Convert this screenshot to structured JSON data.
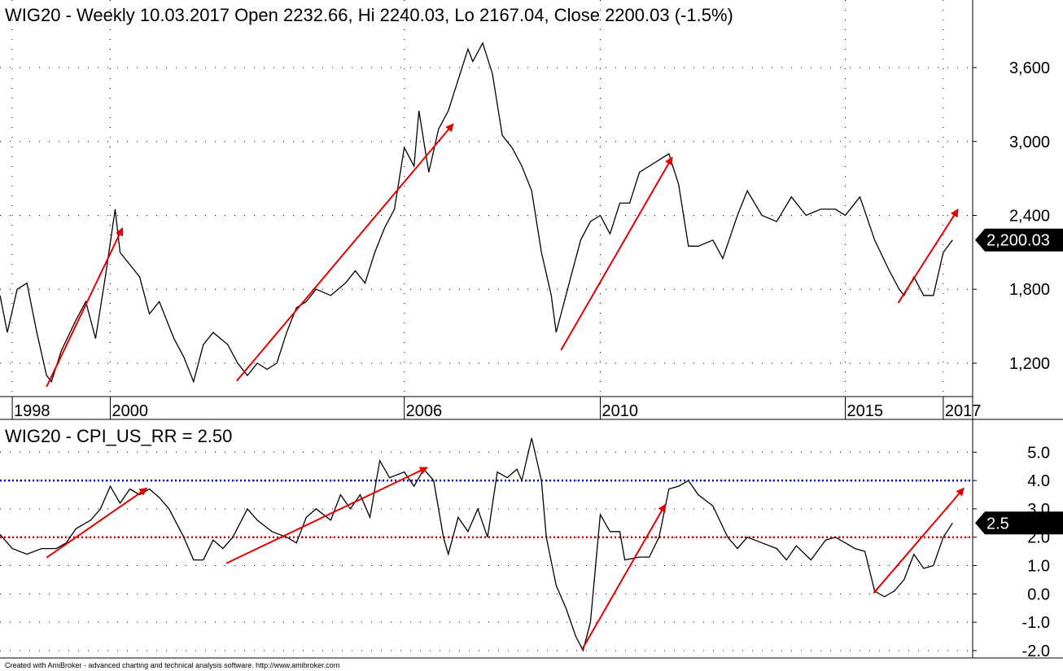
{
  "chart_data": [
    {
      "type": "line",
      "title": "WIG20 - Weekly 10.03.2017 Open 2232.66, Hi 2240.03, Lo 2167.04, Close 2200.03 (-1.5%)",
      "color": "#000000",
      "x": [
        1997.75,
        1997.9,
        1998.1,
        1998.3,
        1998.5,
        1998.7,
        1998.8,
        1999.0,
        1999.3,
        1999.5,
        1999.7,
        1999.9,
        2000.1,
        2000.2,
        2000.4,
        2000.6,
        2000.8,
        2001.0,
        2001.3,
        2001.5,
        2001.7,
        2001.9,
        2002.1,
        2002.4,
        2002.6,
        2002.8,
        2003.0,
        2003.2,
        2003.4,
        2003.6,
        2003.8,
        2004.0,
        2004.2,
        2004.5,
        2004.8,
        2005.0,
        2005.2,
        2005.4,
        2005.6,
        2005.8,
        2006.0,
        2006.2,
        2006.3,
        2006.5,
        2006.7,
        2006.9,
        2007.1,
        2007.3,
        2007.4,
        2007.6,
        2007.8,
        2008.0,
        2008.2,
        2008.4,
        2008.6,
        2008.8,
        2009.0,
        2009.1,
        2009.2,
        2009.4,
        2009.6,
        2009.8,
        2010.0,
        2010.2,
        2010.4,
        2010.6,
        2010.8,
        2011.0,
        2011.2,
        2011.4,
        2011.6,
        2011.8,
        2012.0,
        2012.3,
        2012.5,
        2012.8,
        2013.0,
        2013.3,
        2013.6,
        2013.9,
        2014.2,
        2014.5,
        2014.8,
        2015.0,
        2015.3,
        2015.6,
        2015.9,
        2016.1,
        2016.2,
        2016.4,
        2016.6,
        2016.8,
        2017.0,
        2017.19
      ],
      "values": [
        1750,
        1450,
        1800,
        1850,
        1450,
        1100,
        1050,
        1300,
        1550,
        1700,
        1400,
        1900,
        2450,
        2100,
        2000,
        1900,
        1600,
        1700,
        1400,
        1250,
        1050,
        1350,
        1450,
        1350,
        1200,
        1100,
        1200,
        1150,
        1200,
        1450,
        1650,
        1700,
        1800,
        1750,
        1850,
        1950,
        1850,
        2100,
        2300,
        2450,
        2950,
        2800,
        3250,
        2750,
        3100,
        3250,
        3500,
        3750,
        3650,
        3800,
        3550,
        3050,
        2950,
        2800,
        2600,
        2100,
        1750,
        1450,
        1600,
        1900,
        2200,
        2350,
        2400,
        2250,
        2500,
        2500,
        2750,
        2800,
        2850,
        2900,
        2650,
        2150,
        2150,
        2200,
        2050,
        2400,
        2600,
        2400,
        2350,
        2550,
        2400,
        2450,
        2450,
        2400,
        2550,
        2200,
        1950,
        1800,
        1750,
        1900,
        1750,
        1750,
        2100,
        2200.03
      ],
      "xlim": [
        1997.75,
        2017.6
      ],
      "xticks": [
        1998,
        2000,
        2006,
        2010,
        2015,
        2017
      ],
      "ylim": [
        942,
        4149
      ],
      "yticks": [
        {
          "value": 1200,
          "label": "1,200"
        },
        {
          "value": 1800,
          "label": "1,800"
        },
        {
          "value": 2400,
          "label": "2,400"
        },
        {
          "value": 3000,
          "label": "3,000"
        },
        {
          "value": 3600,
          "label": "3,600"
        }
      ],
      "last_value": {
        "value": 2200.03,
        "label": "2,200.03"
      },
      "arrow_color": "#e00000",
      "arrows": [
        {
          "from": [
            1998.7,
            1008
          ],
          "to": [
            2000.25,
            2297
          ]
        },
        {
          "from": [
            2002.58,
            1055
          ],
          "to": [
            2007.0,
            3143
          ]
        },
        {
          "from": [
            2009.2,
            1306
          ],
          "to": [
            2011.47,
            2872
          ]
        },
        {
          "from": [
            2016.08,
            1689
          ],
          "to": [
            2017.3,
            2449
          ]
        }
      ],
      "grid": true
    },
    {
      "type": "line",
      "title": "WIG20 - CPI_US_RR = 2.50",
      "color": "#000000",
      "x": [
        1997.75,
        1998.0,
        1998.3,
        1998.6,
        1998.9,
        1999.1,
        1999.3,
        1999.6,
        1999.8,
        2000.0,
        2000.2,
        2000.4,
        2000.6,
        2000.8,
        2001.0,
        2001.2,
        2001.5,
        2001.7,
        2001.9,
        2002.1,
        2002.3,
        2002.5,
        2002.8,
        2003.0,
        2003.3,
        2003.6,
        2003.8,
        2004.0,
        2004.2,
        2004.5,
        2004.7,
        2004.9,
        2005.1,
        2005.3,
        2005.5,
        2005.7,
        2006.0,
        2006.2,
        2006.4,
        2006.6,
        2006.8,
        2006.9,
        2007.1,
        2007.3,
        2007.5,
        2007.7,
        2007.9,
        2008.1,
        2008.3,
        2008.4,
        2008.6,
        2008.8,
        2008.9,
        2009.1,
        2009.3,
        2009.5,
        2009.65,
        2009.8,
        2010.0,
        2010.2,
        2010.4,
        2010.5,
        2010.8,
        2011.0,
        2011.2,
        2011.4,
        2011.6,
        2011.8,
        2012.0,
        2012.3,
        2012.6,
        2012.8,
        2013.0,
        2013.3,
        2013.6,
        2013.8,
        2014.0,
        2014.3,
        2014.6,
        2014.8,
        2015.0,
        2015.2,
        2015.4,
        2015.6,
        2015.8,
        2016.0,
        2016.2,
        2016.4,
        2016.6,
        2016.8,
        2017.0,
        2017.19
      ],
      "values": [
        2.1,
        1.6,
        1.4,
        1.6,
        1.6,
        1.8,
        2.3,
        2.6,
        3.0,
        3.8,
        3.2,
        3.7,
        3.5,
        3.7,
        3.4,
        3.0,
        2.0,
        1.2,
        1.2,
        1.9,
        1.6,
        2.0,
        3.0,
        2.6,
        2.2,
        2.0,
        1.8,
        2.7,
        3.0,
        2.6,
        3.5,
        3.0,
        3.5,
        2.7,
        4.7,
        4.1,
        4.3,
        3.8,
        4.4,
        4.0,
        2.0,
        1.4,
        2.7,
        2.2,
        3.0,
        2.0,
        4.3,
        4.1,
        4.4,
        4.0,
        5.5,
        4.0,
        2.0,
        0.3,
        -0.5,
        -1.5,
        -2.0,
        -1.0,
        2.8,
        2.2,
        2.2,
        1.2,
        1.3,
        1.3,
        2.0,
        3.7,
        3.8,
        4.0,
        3.5,
        3.1,
        2.0,
        1.6,
        2.0,
        1.8,
        1.6,
        1.2,
        1.7,
        1.2,
        1.9,
        2.0,
        1.8,
        1.6,
        1.5,
        0.1,
        -0.1,
        0.1,
        0.5,
        1.4,
        0.9,
        1.0,
        2.0,
        2.5
      ],
      "xlim": [
        1997.75,
        2017.6
      ],
      "ylim": [
        -2.26,
        6.1
      ],
      "yticks": [
        {
          "value": -2,
          "label": "-2.0"
        },
        {
          "value": -1,
          "label": "-1.0"
        },
        {
          "value": 0,
          "label": "0.0"
        },
        {
          "value": 1,
          "label": "1.0"
        },
        {
          "value": 2,
          "label": "2.0"
        },
        {
          "value": 3,
          "label": "3.0"
        },
        {
          "value": 4,
          "label": "4.0"
        },
        {
          "value": 5,
          "label": "5.0"
        }
      ],
      "last_value": {
        "value": 2.5,
        "label": "2.5"
      },
      "levels": [
        {
          "value": 4,
          "color": "#0000c8"
        },
        {
          "value": 2,
          "color": "#e00000"
        }
      ],
      "arrow_color": "#e00000",
      "arrows": [
        {
          "from": [
            1998.7,
            1.28
          ],
          "to": [
            2000.75,
            3.73
          ]
        },
        {
          "from": [
            2002.37,
            1.08
          ],
          "to": [
            2006.47,
            4.46
          ]
        },
        {
          "from": [
            2009.63,
            -1.96
          ],
          "to": [
            2011.33,
            3.16
          ]
        },
        {
          "from": [
            2015.58,
            0.03
          ],
          "to": [
            2017.42,
            3.73
          ]
        }
      ],
      "grid": true
    }
  ],
  "footer": "Created with AmiBroker - advanced charting and technical analysis software. http://www.amibroker.com"
}
